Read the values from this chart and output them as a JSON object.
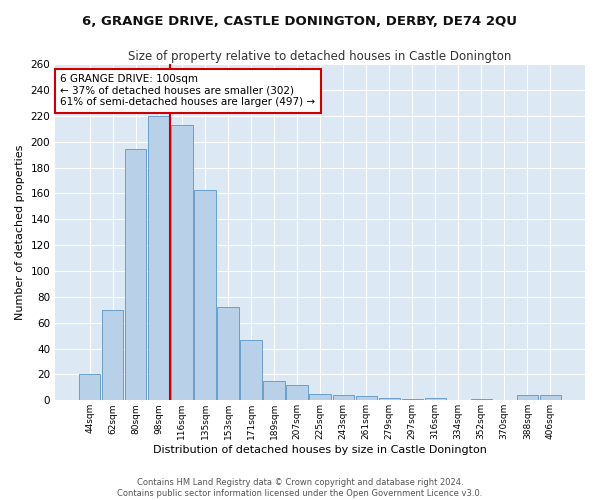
{
  "title": "6, GRANGE DRIVE, CASTLE DONINGTON, DERBY, DE74 2QU",
  "subtitle": "Size of property relative to detached houses in Castle Donington",
  "xlabel": "Distribution of detached houses by size in Castle Donington",
  "ylabel": "Number of detached properties",
  "categories": [
    "44sqm",
    "62sqm",
    "80sqm",
    "98sqm",
    "116sqm",
    "135sqm",
    "153sqm",
    "171sqm",
    "189sqm",
    "207sqm",
    "225sqm",
    "243sqm",
    "261sqm",
    "279sqm",
    "297sqm",
    "316sqm",
    "334sqm",
    "352sqm",
    "370sqm",
    "388sqm",
    "406sqm"
  ],
  "values": [
    20,
    70,
    194,
    220,
    213,
    163,
    72,
    47,
    15,
    12,
    5,
    4,
    3,
    2,
    1,
    2,
    0,
    1,
    0,
    4,
    4
  ],
  "bar_color": "#b8d0e8",
  "bar_edge_color": "#6aa0cc",
  "vline_x": 3.5,
  "vline_color": "#cc0000",
  "annotation_title": "6 GRANGE DRIVE: 100sqm",
  "annotation_line1": "← 37% of detached houses are smaller (302)",
  "annotation_line2": "61% of semi-detached houses are larger (497) →",
  "annotation_box_color": "#ffffff",
  "annotation_box_edge_color": "#cc0000",
  "ylim": [
    0,
    260
  ],
  "yticks": [
    0,
    20,
    40,
    60,
    80,
    100,
    120,
    140,
    160,
    180,
    200,
    220,
    240,
    260
  ],
  "background_color": "#dce9f5",
  "footer_line1": "Contains HM Land Registry data © Crown copyright and database right 2024.",
  "footer_line2": "Contains public sector information licensed under the Open Government Licence v3.0.",
  "title_fontsize": 9.5,
  "subtitle_fontsize": 8.5,
  "xlabel_fontsize": 8,
  "ylabel_fontsize": 8
}
